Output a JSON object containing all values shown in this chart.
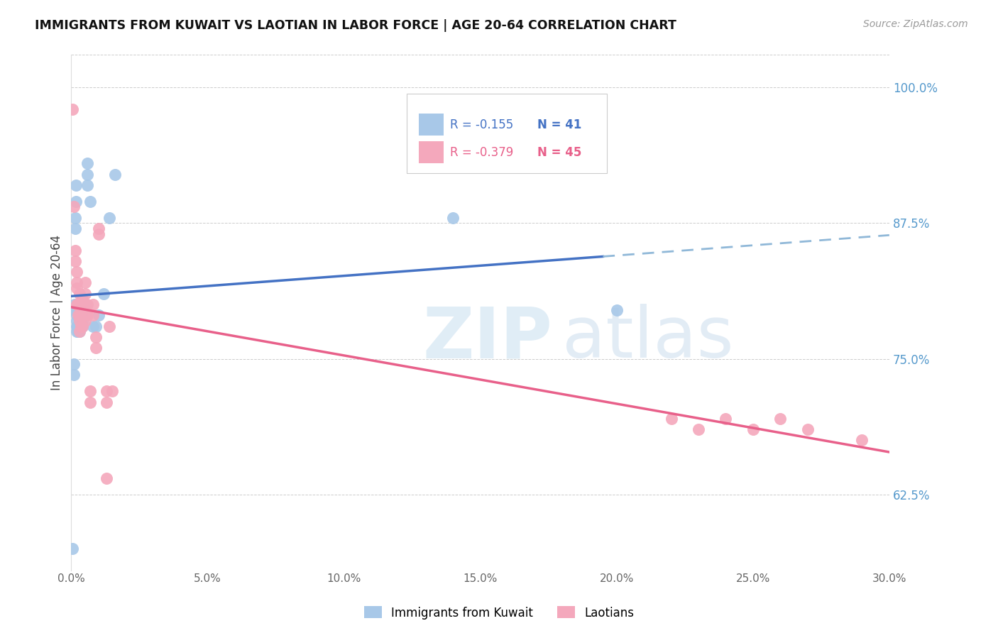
{
  "title": "IMMIGRANTS FROM KUWAIT VS LAOTIAN IN LABOR FORCE | AGE 20-64 CORRELATION CHART",
  "source": "Source: ZipAtlas.com",
  "xlabel_ticks": [
    "0.0%",
    "5.0%",
    "10.0%",
    "15.0%",
    "20.0%",
    "25.0%",
    "30.0%"
  ],
  "xlabel_vals": [
    0.0,
    0.05,
    0.1,
    0.15,
    0.2,
    0.25,
    0.3
  ],
  "ylabel_ticks": [
    "62.5%",
    "75.0%",
    "87.5%",
    "100.0%"
  ],
  "ylabel_vals": [
    0.625,
    0.75,
    0.875,
    1.0
  ],
  "xlim": [
    0.0,
    0.3
  ],
  "ylim": [
    0.555,
    1.03
  ],
  "ylabel": "In Labor Force | Age 20-64",
  "legend_blue_R": "-0.155",
  "legend_blue_N": "41",
  "legend_pink_R": "-0.379",
  "legend_pink_N": "45",
  "blue_scatter": [
    [
      0.0005,
      0.575
    ],
    [
      0.001,
      0.735
    ],
    [
      0.001,
      0.745
    ],
    [
      0.0012,
      0.795
    ],
    [
      0.0012,
      0.8
    ],
    [
      0.0015,
      0.87
    ],
    [
      0.0015,
      0.88
    ],
    [
      0.0018,
      0.895
    ],
    [
      0.0018,
      0.91
    ],
    [
      0.002,
      0.775
    ],
    [
      0.002,
      0.78
    ],
    [
      0.002,
      0.785
    ],
    [
      0.002,
      0.79
    ],
    [
      0.002,
      0.795
    ],
    [
      0.0022,
      0.78
    ],
    [
      0.0025,
      0.775
    ],
    [
      0.0025,
      0.78
    ],
    [
      0.003,
      0.775
    ],
    [
      0.003,
      0.78
    ],
    [
      0.003,
      0.785
    ],
    [
      0.003,
      0.79
    ],
    [
      0.003,
      0.795
    ],
    [
      0.003,
      0.8
    ],
    [
      0.0035,
      0.785
    ],
    [
      0.004,
      0.78
    ],
    [
      0.004,
      0.785
    ],
    [
      0.004,
      0.79
    ],
    [
      0.005,
      0.79
    ],
    [
      0.005,
      0.8
    ],
    [
      0.006,
      0.91
    ],
    [
      0.006,
      0.92
    ],
    [
      0.006,
      0.93
    ],
    [
      0.007,
      0.895
    ],
    [
      0.008,
      0.78
    ],
    [
      0.009,
      0.78
    ],
    [
      0.01,
      0.79
    ],
    [
      0.012,
      0.81
    ],
    [
      0.014,
      0.88
    ],
    [
      0.016,
      0.92
    ],
    [
      0.14,
      0.88
    ],
    [
      0.2,
      0.795
    ]
  ],
  "pink_scatter": [
    [
      0.0005,
      0.98
    ],
    [
      0.001,
      0.89
    ],
    [
      0.0015,
      0.84
    ],
    [
      0.0015,
      0.85
    ],
    [
      0.002,
      0.8
    ],
    [
      0.002,
      0.815
    ],
    [
      0.002,
      0.82
    ],
    [
      0.002,
      0.83
    ],
    [
      0.0025,
      0.79
    ],
    [
      0.0025,
      0.8
    ],
    [
      0.003,
      0.775
    ],
    [
      0.003,
      0.785
    ],
    [
      0.003,
      0.79
    ],
    [
      0.003,
      0.8
    ],
    [
      0.003,
      0.81
    ],
    [
      0.0035,
      0.78
    ],
    [
      0.004,
      0.78
    ],
    [
      0.004,
      0.795
    ],
    [
      0.004,
      0.805
    ],
    [
      0.005,
      0.785
    ],
    [
      0.005,
      0.8
    ],
    [
      0.005,
      0.81
    ],
    [
      0.005,
      0.82
    ],
    [
      0.006,
      0.79
    ],
    [
      0.006,
      0.8
    ],
    [
      0.007,
      0.71
    ],
    [
      0.007,
      0.72
    ],
    [
      0.008,
      0.79
    ],
    [
      0.008,
      0.8
    ],
    [
      0.009,
      0.77
    ],
    [
      0.009,
      0.76
    ],
    [
      0.01,
      0.865
    ],
    [
      0.01,
      0.87
    ],
    [
      0.013,
      0.72
    ],
    [
      0.013,
      0.71
    ],
    [
      0.013,
      0.64
    ],
    [
      0.014,
      0.78
    ],
    [
      0.015,
      0.72
    ],
    [
      0.22,
      0.695
    ],
    [
      0.23,
      0.685
    ],
    [
      0.24,
      0.695
    ],
    [
      0.25,
      0.685
    ],
    [
      0.26,
      0.695
    ],
    [
      0.27,
      0.685
    ],
    [
      0.29,
      0.675
    ]
  ],
  "blue_color": "#a8c8e8",
  "pink_color": "#f4a8bc",
  "blue_line_color": "#4472c4",
  "pink_line_color": "#e8608a",
  "dashed_line_color": "#90b8d8",
  "grid_color": "#cccccc",
  "right_tick_color": "#5599cc",
  "title_color": "#111111",
  "background_color": "#ffffff"
}
